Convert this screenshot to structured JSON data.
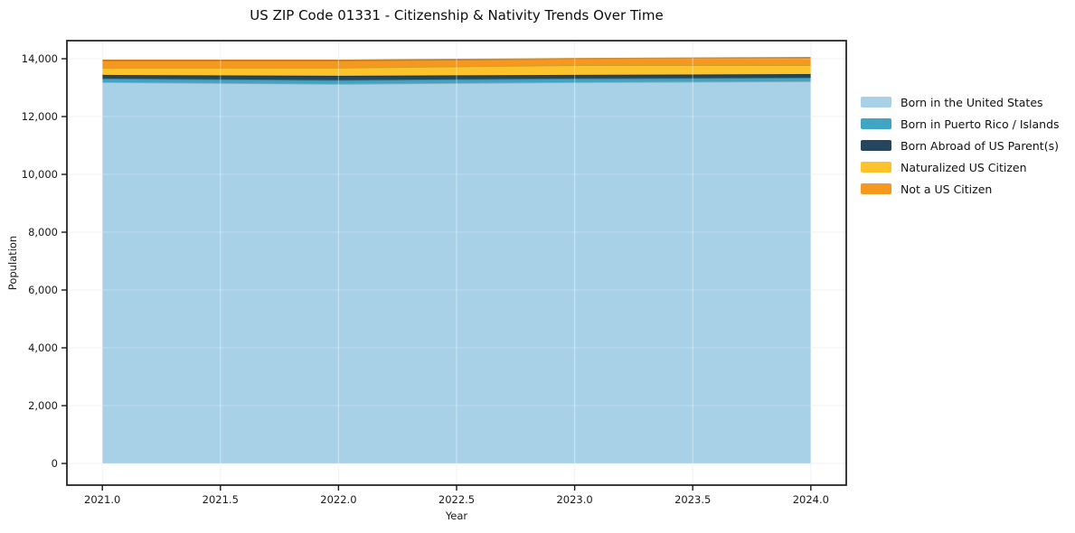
{
  "chart_data": {
    "type": "area",
    "stacked": true,
    "title": "US ZIP Code 01331 - Citizenship & Nativity Trends Over Time",
    "xlabel": "Year",
    "ylabel": "Population",
    "x": [
      2021,
      2022,
      2023,
      2024
    ],
    "series": [
      {
        "name": "Born in the United States",
        "color": "#a8d1e7",
        "values": [
          13190,
          13130,
          13190,
          13220
        ]
      },
      {
        "name": "Born in Puerto Rico / Islands",
        "color": "#3fa5c2",
        "values": [
          125,
          130,
          125,
          125
        ]
      },
      {
        "name": "Born Abroad of US Parent(s)",
        "color": "#25465c",
        "values": [
          125,
          150,
          125,
          125
        ]
      },
      {
        "name": "Naturalized US Citizen",
        "color": "#fcc32d",
        "values": [
          250,
          280,
          340,
          310
        ]
      },
      {
        "name": "Not a US Citizen",
        "color": "#f5981f",
        "values": [
          250,
          250,
          220,
          250
        ]
      }
    ],
    "xticks": [
      2021.0,
      2021.5,
      2022.0,
      2022.5,
      2023.0,
      2023.5,
      2024.0
    ],
    "xtick_labels": [
      "2021.0",
      "2021.5",
      "2022.0",
      "2022.5",
      "2023.0",
      "2023.5",
      "2024.0"
    ],
    "yticks": [
      0,
      2000,
      4000,
      6000,
      8000,
      10000,
      12000,
      14000
    ],
    "ytick_labels": [
      "0",
      "2,000",
      "4,000",
      "6,000",
      "8,000",
      "10,000",
      "12,000",
      "14,000"
    ],
    "xlim": [
      2020.85,
      2024.15
    ],
    "ylim": [
      -750,
      14625
    ],
    "grid": true,
    "legend_position": "right",
    "frame_color": "#1a1a1a",
    "grid_color": "#ececec"
  }
}
